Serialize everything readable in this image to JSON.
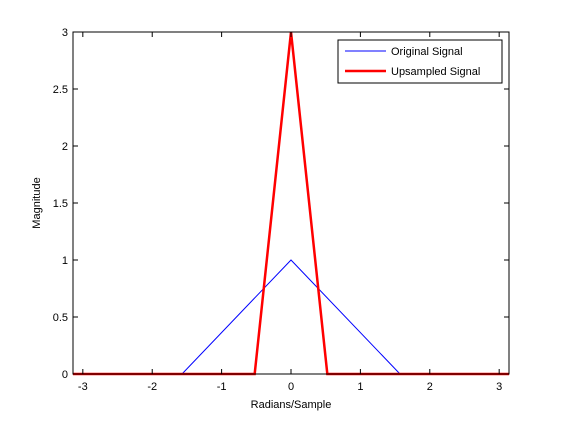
{
  "chart_data": {
    "type": "line",
    "title": "",
    "xlabel": "Radians/Sample",
    "ylabel": "Magnitude",
    "xlim": [
      -3.14159,
      3.14159
    ],
    "ylim": [
      0,
      3
    ],
    "xticks": [
      -3,
      -2,
      -1,
      0,
      1,
      2,
      3
    ],
    "xtick_labels": [
      "-3",
      "-2",
      "-1",
      "0",
      "1",
      "2",
      "3"
    ],
    "yticks": [
      0,
      0.5,
      1,
      1.5,
      2,
      2.5,
      3
    ],
    "ytick_labels": [
      "0",
      "0.5",
      "1",
      "1.5",
      "2",
      "2.5",
      "3"
    ],
    "grid": false,
    "legend_position": "top-right",
    "series": [
      {
        "name": "Original Signal",
        "color": "#0000ff",
        "line_width": 1,
        "x": [
          -3.14159,
          -1.5708,
          0,
          1.5708,
          3.14159
        ],
        "y": [
          0,
          0,
          1,
          0,
          0
        ]
      },
      {
        "name": "Upsampled Signal",
        "color": "#ff0000",
        "line_width": 2.5,
        "x": [
          -3.14159,
          -0.5236,
          0,
          0.5236,
          3.14159
        ],
        "y": [
          0,
          0,
          3,
          0,
          0
        ]
      }
    ]
  }
}
